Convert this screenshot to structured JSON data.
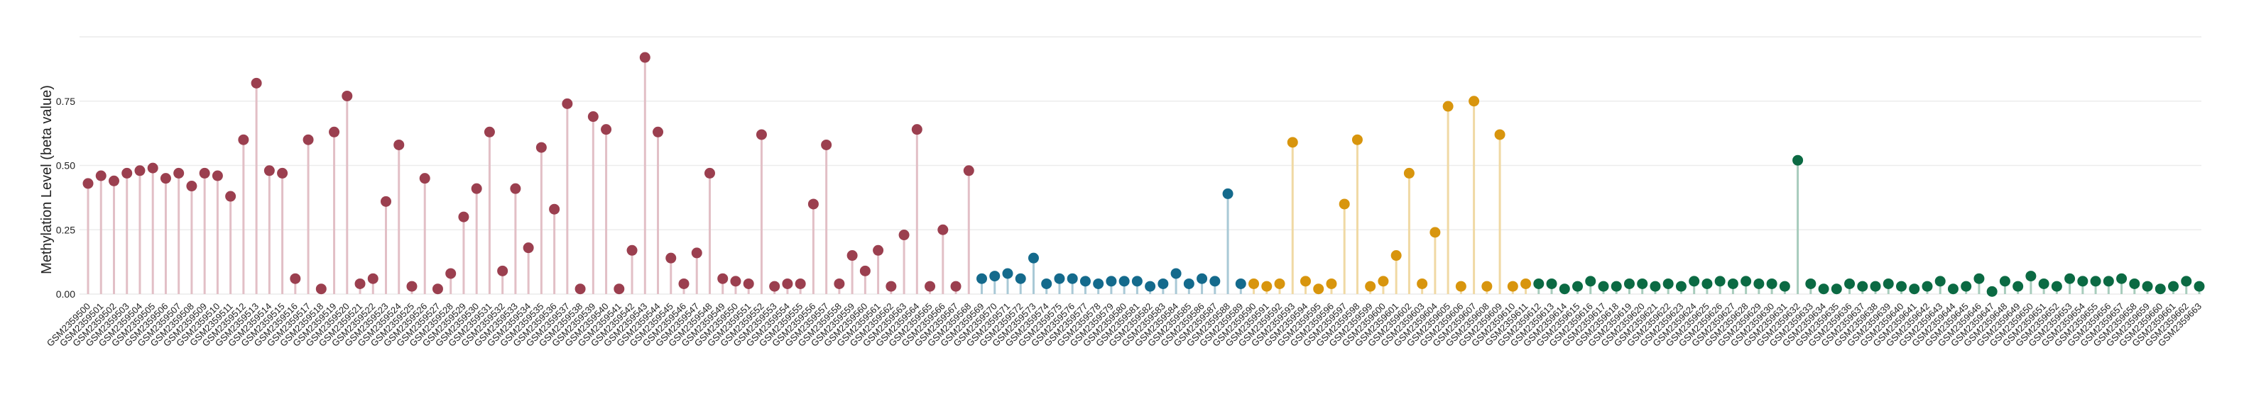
{
  "chart_data": {
    "type": "lollipop",
    "title": "",
    "xlabel": "",
    "ylabel": "Methylation Level (beta value)",
    "ylim": [
      0,
      1.0
    ],
    "yticks": [
      0.0,
      0.25,
      0.5,
      0.75
    ],
    "ytick_labels": [
      "0.00",
      "0.25",
      "0.50",
      "0.75"
    ],
    "grid": true,
    "legend": "none",
    "groups": [
      {
        "color": "#9B3F4F",
        "stem_color": "#E2BFC6",
        "count": 69
      },
      {
        "color": "#146A8C",
        "stem_color": "#A9C9D6",
        "count": 21
      },
      {
        "color": "#D8950D",
        "stem_color": "#F0D9A4",
        "count": 22
      },
      {
        "color": "#0B6A43",
        "stem_color": "#A7CCBC",
        "count": 52
      }
    ],
    "x": [
      "GSM2359500",
      "GSM2359501",
      "GSM2359502",
      "GSM2359503",
      "GSM2359504",
      "GSM2359505",
      "GSM2359506",
      "GSM2359507",
      "GSM2359508",
      "GSM2359509",
      "GSM2359510",
      "GSM2359511",
      "GSM2359512",
      "GSM2359513",
      "GSM2359514",
      "GSM2359515",
      "GSM2359516",
      "GSM2359517",
      "GSM2359518",
      "GSM2359519",
      "GSM2359520",
      "GSM2359521",
      "GSM2359522",
      "GSM2359523",
      "GSM2359524",
      "GSM2359525",
      "GSM2359526",
      "GSM2359527",
      "GSM2359528",
      "GSM2359529",
      "GSM2359530",
      "GSM2359531",
      "GSM2359532",
      "GSM2359533",
      "GSM2359534",
      "GSM2359535",
      "GSM2359536",
      "GSM2359537",
      "GSM2359538",
      "GSM2359539",
      "GSM2359540",
      "GSM2359541",
      "GSM2359542",
      "GSM2359543",
      "GSM2359544",
      "GSM2359545",
      "GSM2359546",
      "GSM2359547",
      "GSM2359548",
      "GSM2359549",
      "GSM2359550",
      "GSM2359551",
      "GSM2359552",
      "GSM2359553",
      "GSM2359554",
      "GSM2359555",
      "GSM2359556",
      "GSM2359557",
      "GSM2359558",
      "GSM2359559",
      "GSM2359560",
      "GSM2359561",
      "GSM2359562",
      "GSM2359563",
      "GSM2359564",
      "GSM2359565",
      "GSM2359566",
      "GSM2359567",
      "GSM2359568",
      "GSM2359569",
      "GSM2359570",
      "GSM2359571",
      "GSM2359572",
      "GSM2359573",
      "GSM2359574",
      "GSM2359575",
      "GSM2359576",
      "GSM2359577",
      "GSM2359578",
      "GSM2359579",
      "GSM2359580",
      "GSM2359581",
      "GSM2359582",
      "GSM2359583",
      "GSM2359584",
      "GSM2359585",
      "GSM2359586",
      "GSM2359587",
      "GSM2359588",
      "GSM2359589",
      "GSM2359590",
      "GSM2359591",
      "GSM2359592",
      "GSM2359593",
      "GSM2359594",
      "GSM2359595",
      "GSM2359596",
      "GSM2359597",
      "GSM2359598",
      "GSM2359599",
      "GSM2359600",
      "GSM2359601",
      "GSM2359602",
      "GSM2359603",
      "GSM2359604",
      "GSM2359605",
      "GSM2359606",
      "GSM2359607",
      "GSM2359608",
      "GSM2359609",
      "GSM2359610",
      "GSM2359611",
      "GSM2359612",
      "GSM2359613",
      "GSM2359614",
      "GSM2359615",
      "GSM2359616",
      "GSM2359617",
      "GSM2359618",
      "GSM2359619",
      "GSM2359620",
      "GSM2359621",
      "GSM2359622",
      "GSM2359623",
      "GSM2359624",
      "GSM2359625",
      "GSM2359626",
      "GSM2359627",
      "GSM2359628",
      "GSM2359629",
      "GSM2359630",
      "GSM2359631",
      "GSM2359632",
      "GSM2359633",
      "GSM2359634",
      "GSM2359635",
      "GSM2359636",
      "GSM2359637",
      "GSM2359638",
      "GSM2359639",
      "GSM2359640",
      "GSM2359641",
      "GSM2359642",
      "GSM2359643",
      "GSM2359644",
      "GSM2359645",
      "GSM2359646",
      "GSM2359647",
      "GSM2359648",
      "GSM2359649",
      "GSM2359650",
      "GSM2359651",
      "GSM2359652",
      "GSM2359653",
      "GSM2359654",
      "GSM2359655",
      "GSM2359656",
      "GSM2359657",
      "GSM2359658",
      "GSM2359659",
      "GSM2359660",
      "GSM2359661",
      "GSM2359662",
      "GSM2359663"
    ],
    "values": [
      0.43,
      0.46,
      0.44,
      0.47,
      0.48,
      0.49,
      0.45,
      0.47,
      0.42,
      0.47,
      0.46,
      0.38,
      0.6,
      0.82,
      0.48,
      0.47,
      0.06,
      0.6,
      0.02,
      0.63,
      0.77,
      0.04,
      0.06,
      0.36,
      0.58,
      0.03,
      0.45,
      0.02,
      0.08,
      0.3,
      0.41,
      0.63,
      0.09,
      0.41,
      0.18,
      0.57,
      0.33,
      0.74,
      0.02,
      0.69,
      0.64,
      0.02,
      0.17,
      0.92,
      0.63,
      0.14,
      0.04,
      0.16,
      0.47,
      0.06,
      0.05,
      0.04,
      0.62,
      0.03,
      0.04,
      0.04,
      0.35,
      0.58,
      0.04,
      0.15,
      0.09,
      0.17,
      0.03,
      0.23,
      0.64,
      0.03,
      0.25,
      0.03,
      0.48,
      0.06,
      0.07,
      0.08,
      0.06,
      0.14,
      0.04,
      0.06,
      0.06,
      0.05,
      0.04,
      0.05,
      0.05,
      0.05,
      0.03,
      0.04,
      0.08,
      0.04,
      0.06,
      0.05,
      0.39,
      0.04,
      0.04,
      0.03,
      0.04,
      0.59,
      0.05,
      0.02,
      0.04,
      0.35,
      0.6,
      0.03,
      0.05,
      0.15,
      0.47,
      0.04,
      0.24,
      0.73,
      0.03,
      0.75,
      0.03,
      0.62,
      0.03,
      0.04,
      0.04,
      0.04,
      0.02,
      0.03,
      0.05,
      0.03,
      0.03,
      0.04,
      0.04,
      0.03,
      0.04,
      0.03,
      0.05,
      0.04,
      0.05,
      0.04,
      0.05,
      0.04,
      0.04,
      0.03,
      0.52,
      0.04,
      0.02,
      0.02,
      0.04,
      0.03,
      0.03,
      0.04,
      0.03,
      0.02,
      0.03,
      0.05,
      0.02,
      0.03,
      0.06,
      0.01,
      0.05,
      0.03,
      0.07,
      0.04,
      0.03,
      0.06,
      0.05,
      0.05,
      0.05,
      0.06,
      0.04,
      0.03,
      0.02,
      0.03,
      0.05,
      0.03
    ]
  }
}
